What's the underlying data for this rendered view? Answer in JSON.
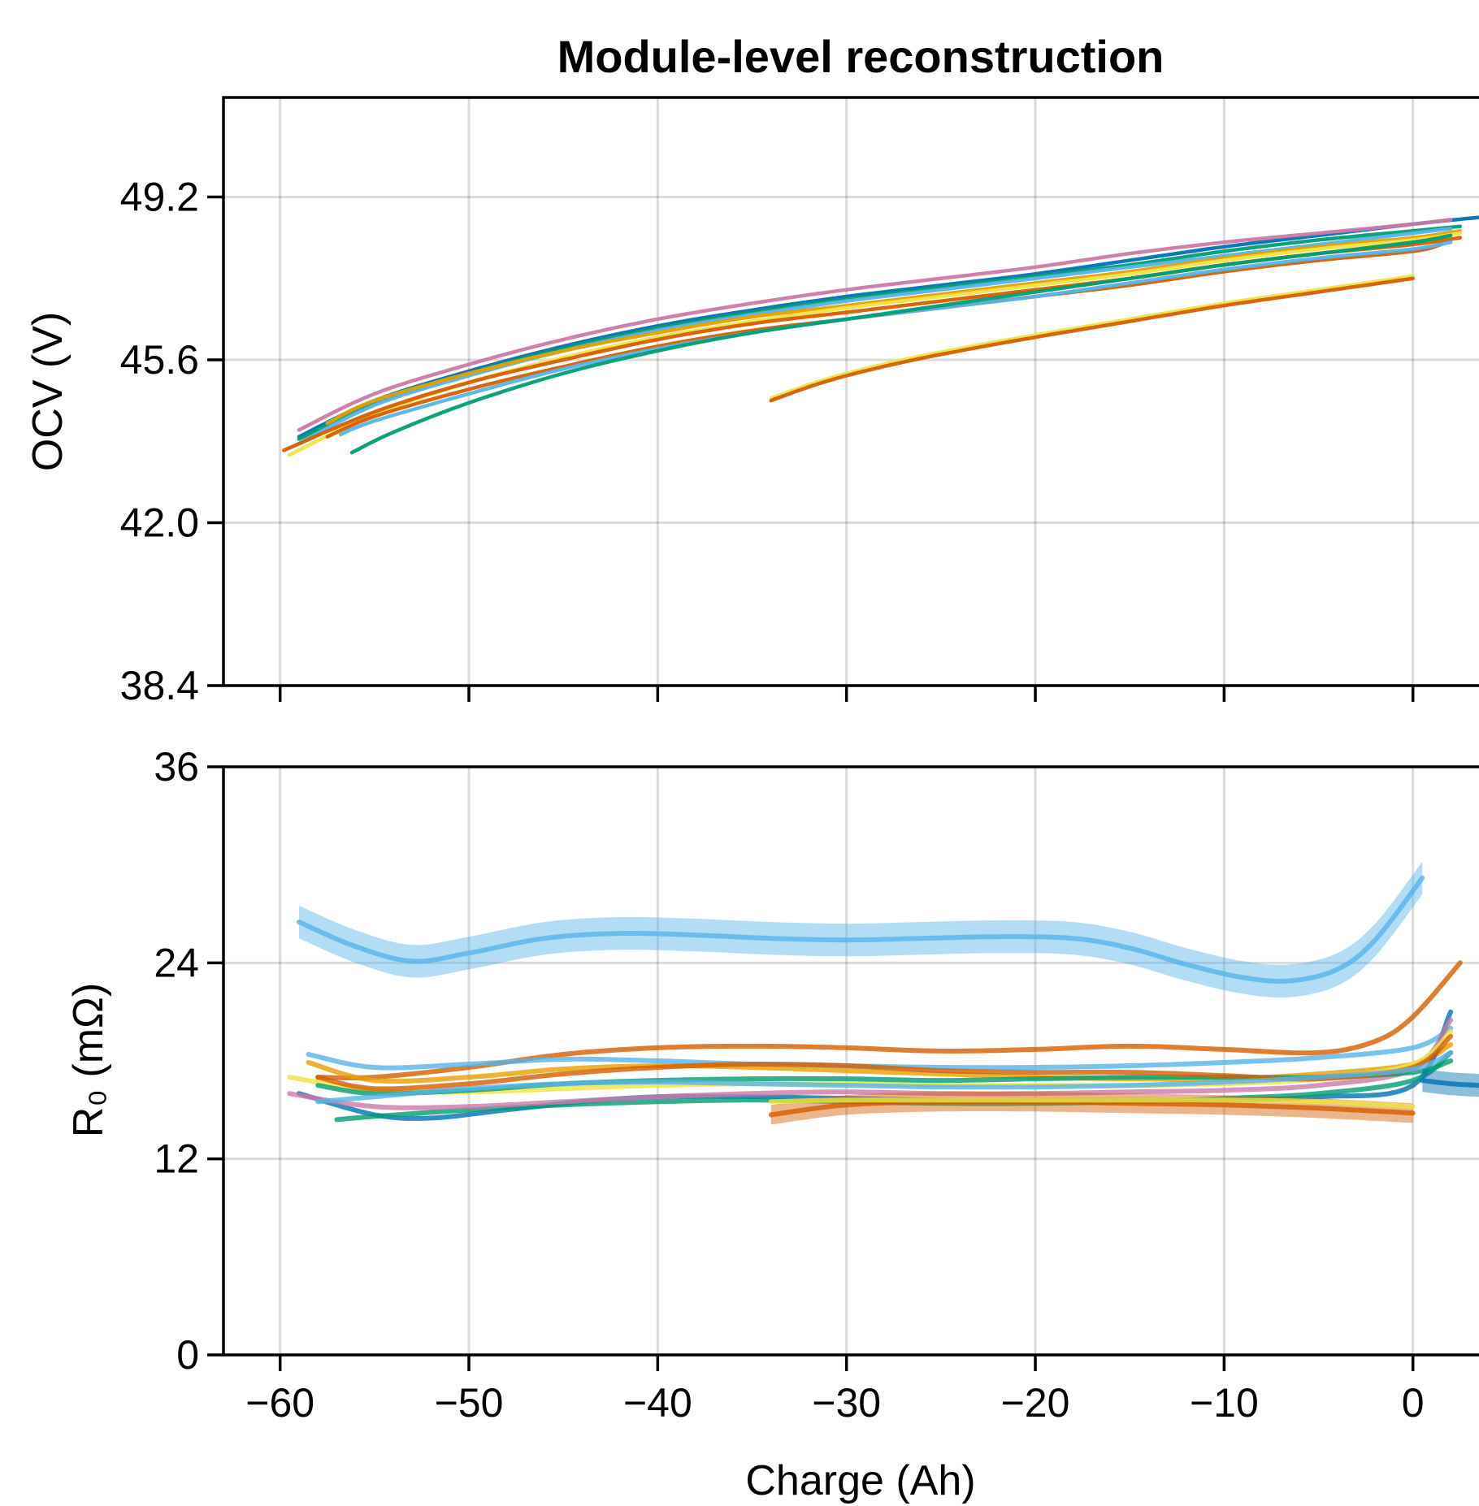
{
  "chart_data": {
    "type": "line",
    "title": "Module-level reconstruction",
    "xlabel": "Charge (Ah)",
    "xlim": [
      -63,
      3.5
    ],
    "xticks": [
      -60,
      -50,
      -40,
      -30,
      -20,
      -10,
      0
    ],
    "xtick_labels": [
      "−60",
      "−50",
      "−40",
      "−30",
      "−20",
      "−10",
      "0"
    ],
    "grid": true,
    "panels": [
      {
        "ylabel": "OCV (V)",
        "ylim": [
          38.4,
          51.4
        ],
        "yticks": [
          38.4,
          42.0,
          45.6,
          49.2
        ],
        "ytick_labels": [
          "38.4",
          "42.0",
          "45.6",
          "49.2"
        ],
        "series": [
          {
            "color": "#0072B2",
            "x": [
              -59,
              -55,
              -50,
              -45,
              -40,
              -35,
              -30,
              -25,
              -20,
              -15,
              -10,
              -5,
              0,
              3.5
            ],
            "y": [
              43.9,
              44.7,
              45.35,
              45.9,
              46.35,
              46.7,
              47.0,
              47.25,
              47.5,
              47.8,
              48.1,
              48.35,
              48.6,
              48.75
            ]
          },
          {
            "color": "#CC79A7",
            "x": [
              -59,
              -55,
              -50,
              -45,
              -40,
              -35,
              -30,
              -25,
              -20,
              -15,
              -10,
              -5,
              0,
              2
            ],
            "y": [
              44.05,
              44.85,
              45.5,
              46.05,
              46.5,
              46.85,
              47.15,
              47.4,
              47.65,
              47.95,
              48.2,
              48.4,
              48.6,
              48.7
            ]
          },
          {
            "color": "#009E73",
            "x": [
              -59,
              -55,
              -50,
              -45,
              -40,
              -35,
              -30,
              -25,
              -20,
              -15,
              -10,
              -5,
              0,
              2.5
            ],
            "y": [
              43.85,
              44.65,
              45.3,
              45.85,
              46.3,
              46.65,
              46.95,
              47.2,
              47.45,
              47.7,
              48.0,
              48.25,
              48.45,
              48.55
            ]
          },
          {
            "color": "#56B4E9",
            "x": [
              -59,
              -55,
              -50,
              -45,
              -40,
              -35,
              -30,
              -25,
              -20,
              -15,
              -10,
              -5,
              0,
              2
            ],
            "y": [
              43.75,
              44.6,
              45.25,
              45.8,
              46.25,
              46.6,
              46.9,
              47.15,
              47.4,
              47.65,
              47.9,
              48.15,
              48.4,
              48.5
            ]
          },
          {
            "color": "#E69F00",
            "x": [
              -57.5,
              -55,
              -50,
              -45,
              -40,
              -35,
              -30,
              -25,
              -20,
              -15,
              -10,
              -5,
              0,
              2.5
            ],
            "y": [
              44.2,
              44.7,
              45.3,
              45.8,
              46.2,
              46.55,
              46.8,
              47.05,
              47.3,
              47.55,
              47.85,
              48.1,
              48.3,
              48.45
            ]
          },
          {
            "color": "#F0E442",
            "x": [
              -59.5,
              -55,
              -50,
              -45,
              -40,
              -35,
              -30,
              -25,
              -20,
              -15,
              -10,
              -5,
              0,
              2.5
            ],
            "y": [
              43.5,
              44.4,
              45.1,
              45.65,
              46.1,
              46.45,
              46.75,
              47.0,
              47.25,
              47.5,
              47.8,
              48.05,
              48.25,
              48.4
            ]
          },
          {
            "color": "#D55E00",
            "x": [
              -59.8,
              -55,
              -50,
              -45,
              -40,
              -35,
              -30,
              -25,
              -20,
              -15,
              -10,
              -5,
              0,
              2.5
            ],
            "y": [
              43.6,
              44.45,
              45.1,
              45.6,
              46.05,
              46.4,
              46.65,
              46.9,
              47.15,
              47.4,
              47.7,
              47.95,
              48.15,
              48.3
            ]
          },
          {
            "color": "#D55E00",
            "x": [
              -57.5,
              -55,
              -50,
              -45,
              -40,
              -35,
              -30,
              -25,
              -20,
              -15,
              -10,
              -5,
              0,
              1.5
            ],
            "y": [
              43.9,
              44.35,
              44.95,
              45.45,
              45.9,
              46.25,
              46.5,
              46.75,
              47.0,
              47.25,
              47.55,
              47.8,
              48.0,
              48.15
            ]
          },
          {
            "color": "#56B4E9",
            "x": [
              -56.8,
              -55,
              -50,
              -45,
              -40,
              -35,
              -30,
              -25,
              -20,
              -15,
              -10,
              -5,
              0,
              2
            ],
            "y": [
              43.95,
              44.25,
              44.85,
              45.4,
              45.85,
              46.2,
              46.5,
              46.75,
              47.0,
              47.3,
              47.6,
              47.85,
              48.05,
              48.2
            ]
          },
          {
            "color": "#009E73",
            "x": [
              -56.2,
              -54,
              -50,
              -45,
              -40,
              -35,
              -30,
              -25,
              -20,
              -15,
              -10,
              -5,
              0,
              2
            ],
            "y": [
              43.55,
              44.0,
              44.65,
              45.3,
              45.8,
              46.2,
              46.5,
              46.8,
              47.1,
              47.4,
              47.7,
              47.95,
              48.2,
              48.35
            ]
          },
          {
            "color": "#F0E442",
            "x": [
              -34,
              -32,
              -30,
              -27,
              -24,
              -20,
              -15,
              -10,
              -5,
              0
            ],
            "y": [
              44.75,
              45.05,
              45.3,
              45.6,
              45.85,
              46.15,
              46.5,
              46.85,
              47.15,
              47.45
            ]
          },
          {
            "color": "#D55E00",
            "x": [
              -34,
              -32,
              -30,
              -27,
              -24,
              -20,
              -15,
              -10,
              -5,
              0
            ],
            "y": [
              44.7,
              45.0,
              45.25,
              45.55,
              45.8,
              46.1,
              46.45,
              46.8,
              47.1,
              47.4
            ]
          }
        ]
      },
      {
        "ylabel": "R₀ (mΩ)",
        "ylim": [
          0,
          36
        ],
        "yticks": [
          0,
          12,
          24,
          36
        ],
        "ytick_labels": [
          "0",
          "12",
          "24",
          "36"
        ],
        "series": [
          {
            "color": "#56B4E9",
            "band": 1.0,
            "x": [
              -59,
              -56,
              -53,
              -50,
              -46,
              -42,
              -38,
              -34,
              -30,
              -26,
              -22,
              -18,
              -15,
              -12,
              -9,
              -6.5,
              -4,
              -2,
              0.5
            ],
            "y": [
              26.5,
              25.0,
              24.1,
              24.6,
              25.5,
              25.8,
              25.7,
              25.5,
              25.4,
              25.5,
              25.6,
              25.5,
              24.9,
              23.9,
              23.1,
              22.9,
              23.6,
              25.4,
              29.2
            ]
          },
          {
            "color": "#D55E00",
            "x": [
              -58,
              -55,
              -50,
              -45,
              -40,
              -35,
              -30,
              -25,
              -20,
              -15,
              -10,
              -5,
              -2,
              0,
              2.5
            ],
            "y": [
              17.0,
              17.0,
              17.6,
              18.4,
              18.8,
              18.9,
              18.8,
              18.6,
              18.7,
              18.9,
              18.7,
              18.5,
              19.2,
              20.7,
              24.0
            ]
          },
          {
            "color": "#56B4E9",
            "x": [
              -58.5,
              -55,
              -50,
              -45,
              -40,
              -35,
              -30,
              -25,
              -20,
              -15,
              -10,
              -5,
              0,
              2
            ],
            "y": [
              18.4,
              17.6,
              17.8,
              18.1,
              18.0,
              17.8,
              17.7,
              17.6,
              17.6,
              17.7,
              17.9,
              18.2,
              18.8,
              20.0
            ]
          },
          {
            "color": "#E69F00",
            "x": [
              -58.5,
              -55,
              -50,
              -45,
              -40,
              -35,
              -30,
              -25,
              -20,
              -15,
              -10,
              -5,
              0,
              2
            ],
            "y": [
              17.9,
              16.8,
              17.0,
              17.5,
              17.7,
              17.6,
              17.4,
              17.2,
              17.0,
              16.9,
              16.9,
              17.2,
              17.8,
              19.0
            ]
          },
          {
            "color": "#0072B2",
            "x": [
              -59,
              -55,
              -52,
              -48,
              -44,
              -40,
              -35,
              -30,
              -25,
              -20,
              -15,
              -10,
              -5,
              0,
              2
            ],
            "y": [
              16.0,
              14.7,
              14.5,
              15.0,
              15.5,
              15.8,
              15.8,
              15.7,
              15.6,
              15.6,
              15.6,
              15.6,
              15.8,
              16.5,
              21.0
            ]
          },
          {
            "color": "#009E73",
            "x": [
              -57,
              -55,
              -50,
              -45,
              -40,
              -35,
              -30,
              -25,
              -20,
              -15,
              -10,
              -5,
              0,
              2
            ],
            "y": [
              14.4,
              14.6,
              15.0,
              15.3,
              15.5,
              15.6,
              15.5,
              15.4,
              15.4,
              15.5,
              15.7,
              16.0,
              16.8,
              18.5
            ]
          },
          {
            "color": "#CC79A7",
            "x": [
              -59.5,
              -55,
              -50,
              -45,
              -40,
              -35,
              -30,
              -25,
              -20,
              -15,
              -10,
              -5,
              0,
              2
            ],
            "y": [
              16.0,
              15.2,
              15.2,
              15.5,
              15.8,
              16.0,
              16.1,
              16.0,
              16.0,
              16.1,
              16.2,
              16.5,
              17.5,
              20.5
            ]
          },
          {
            "color": "#F0E442",
            "x": [
              -59.5,
              -55,
              -50,
              -45,
              -40,
              -35,
              -30,
              -25,
              -20,
              -15,
              -10,
              -5,
              0,
              2
            ],
            "y": [
              17.0,
              16.2,
              16.1,
              16.3,
              16.5,
              16.6,
              16.6,
              16.5,
              16.5,
              16.5,
              16.6,
              16.9,
              17.8,
              19.8
            ]
          },
          {
            "color": "#009E73",
            "x": [
              -58,
              -55,
              -50,
              -45,
              -40,
              -35,
              -30,
              -25,
              -20,
              -15,
              -10,
              -5,
              0,
              2
            ],
            "y": [
              16.5,
              16.0,
              16.2,
              16.6,
              16.8,
              16.9,
              16.9,
              16.8,
              16.9,
              17.0,
              17.0,
              17.0,
              17.3,
              18.0
            ]
          },
          {
            "color": "#D55E00",
            "x": [
              -58,
              -55,
              -50,
              -45,
              -40,
              -35,
              -30,
              -25,
              -20,
              -15,
              -10,
              -5,
              0,
              2
            ],
            "y": [
              17.0,
              16.3,
              16.6,
              17.2,
              17.6,
              17.8,
              17.7,
              17.4,
              17.3,
              17.3,
              17.1,
              16.9,
              17.6,
              19.5
            ]
          },
          {
            "color": "#56B4E9",
            "x": [
              -58,
              -55,
              -50,
              -45,
              -40,
              -35,
              -30,
              -25,
              -20,
              -15,
              -10,
              -5,
              0,
              2
            ],
            "y": [
              15.5,
              15.8,
              16.3,
              16.6,
              16.7,
              16.6,
              16.5,
              16.4,
              16.4,
              16.5,
              16.7,
              17.0,
              17.5,
              18.5
            ]
          },
          {
            "color": "#D55E00",
            "band": 0.6,
            "x": [
              -34,
              -30,
              -25,
              -20,
              -15,
              -10,
              -5,
              0
            ],
            "y": [
              14.7,
              15.3,
              15.5,
              15.5,
              15.4,
              15.3,
              15.1,
              14.8
            ]
          },
          {
            "color": "#F0E442",
            "x": [
              -34,
              -30,
              -25,
              -20,
              -15,
              -10,
              -5,
              0
            ],
            "y": [
              15.5,
              15.6,
              15.6,
              15.6,
              15.6,
              15.6,
              15.5,
              15.2
            ]
          },
          {
            "color": "#0072B2",
            "band": 0.7,
            "x": [
              0.5,
              2,
              3.5
            ],
            "y": [
              16.8,
              16.6,
              16.5
            ]
          }
        ]
      }
    ]
  }
}
